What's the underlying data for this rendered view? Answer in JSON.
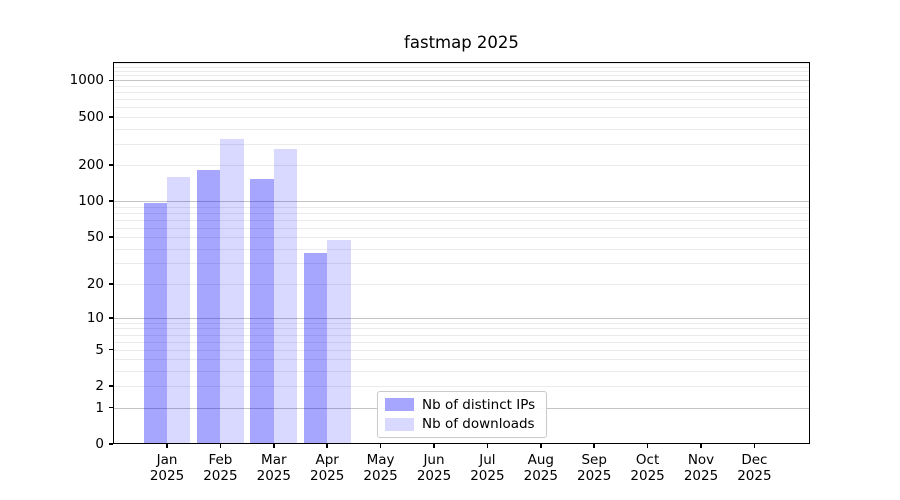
{
  "chart": {
    "title": "fastmap 2025"
  },
  "chart_data": {
    "type": "bar",
    "title": "fastmap 2025",
    "categories": [
      "Jan 2025",
      "Feb 2025",
      "Mar 2025",
      "Apr 2025",
      "May 2025",
      "Jun 2025",
      "Jul 2025",
      "Aug 2025",
      "Sep 2025",
      "Oct 2025",
      "Nov 2025",
      "Dec 2025"
    ],
    "series": [
      {
        "name": "Nb of distinct IPs",
        "color": "rgba(0,0,255,0.35)",
        "color_flat": "#a6a6ff",
        "values": [
          96,
          180,
          152,
          37,
          null,
          null,
          null,
          null,
          null,
          null,
          null,
          null
        ]
      },
      {
        "name": "Nb of downloads",
        "color": "rgba(0,0,255,0.15)",
        "color_flat": "#d9d9ff",
        "values": [
          160,
          325,
          270,
          47,
          null,
          null,
          null,
          null,
          null,
          null,
          null,
          null
        ]
      }
    ],
    "yscale": "log1p",
    "ylim": [
      0,
      1420
    ],
    "yticks": [
      0,
      1,
      2,
      5,
      10,
      20,
      50,
      100,
      200,
      500,
      1000
    ],
    "major_grid_values": [
      1,
      10,
      100,
      1000
    ],
    "grid": "both",
    "legend_position": "lower center inside"
  },
  "colors": {
    "major_grid": "#c4c4c4",
    "minor_grid": "#ebebeb",
    "spine": "#000000",
    "legend_border": "#c9c9c9",
    "background": "#ffffff"
  }
}
